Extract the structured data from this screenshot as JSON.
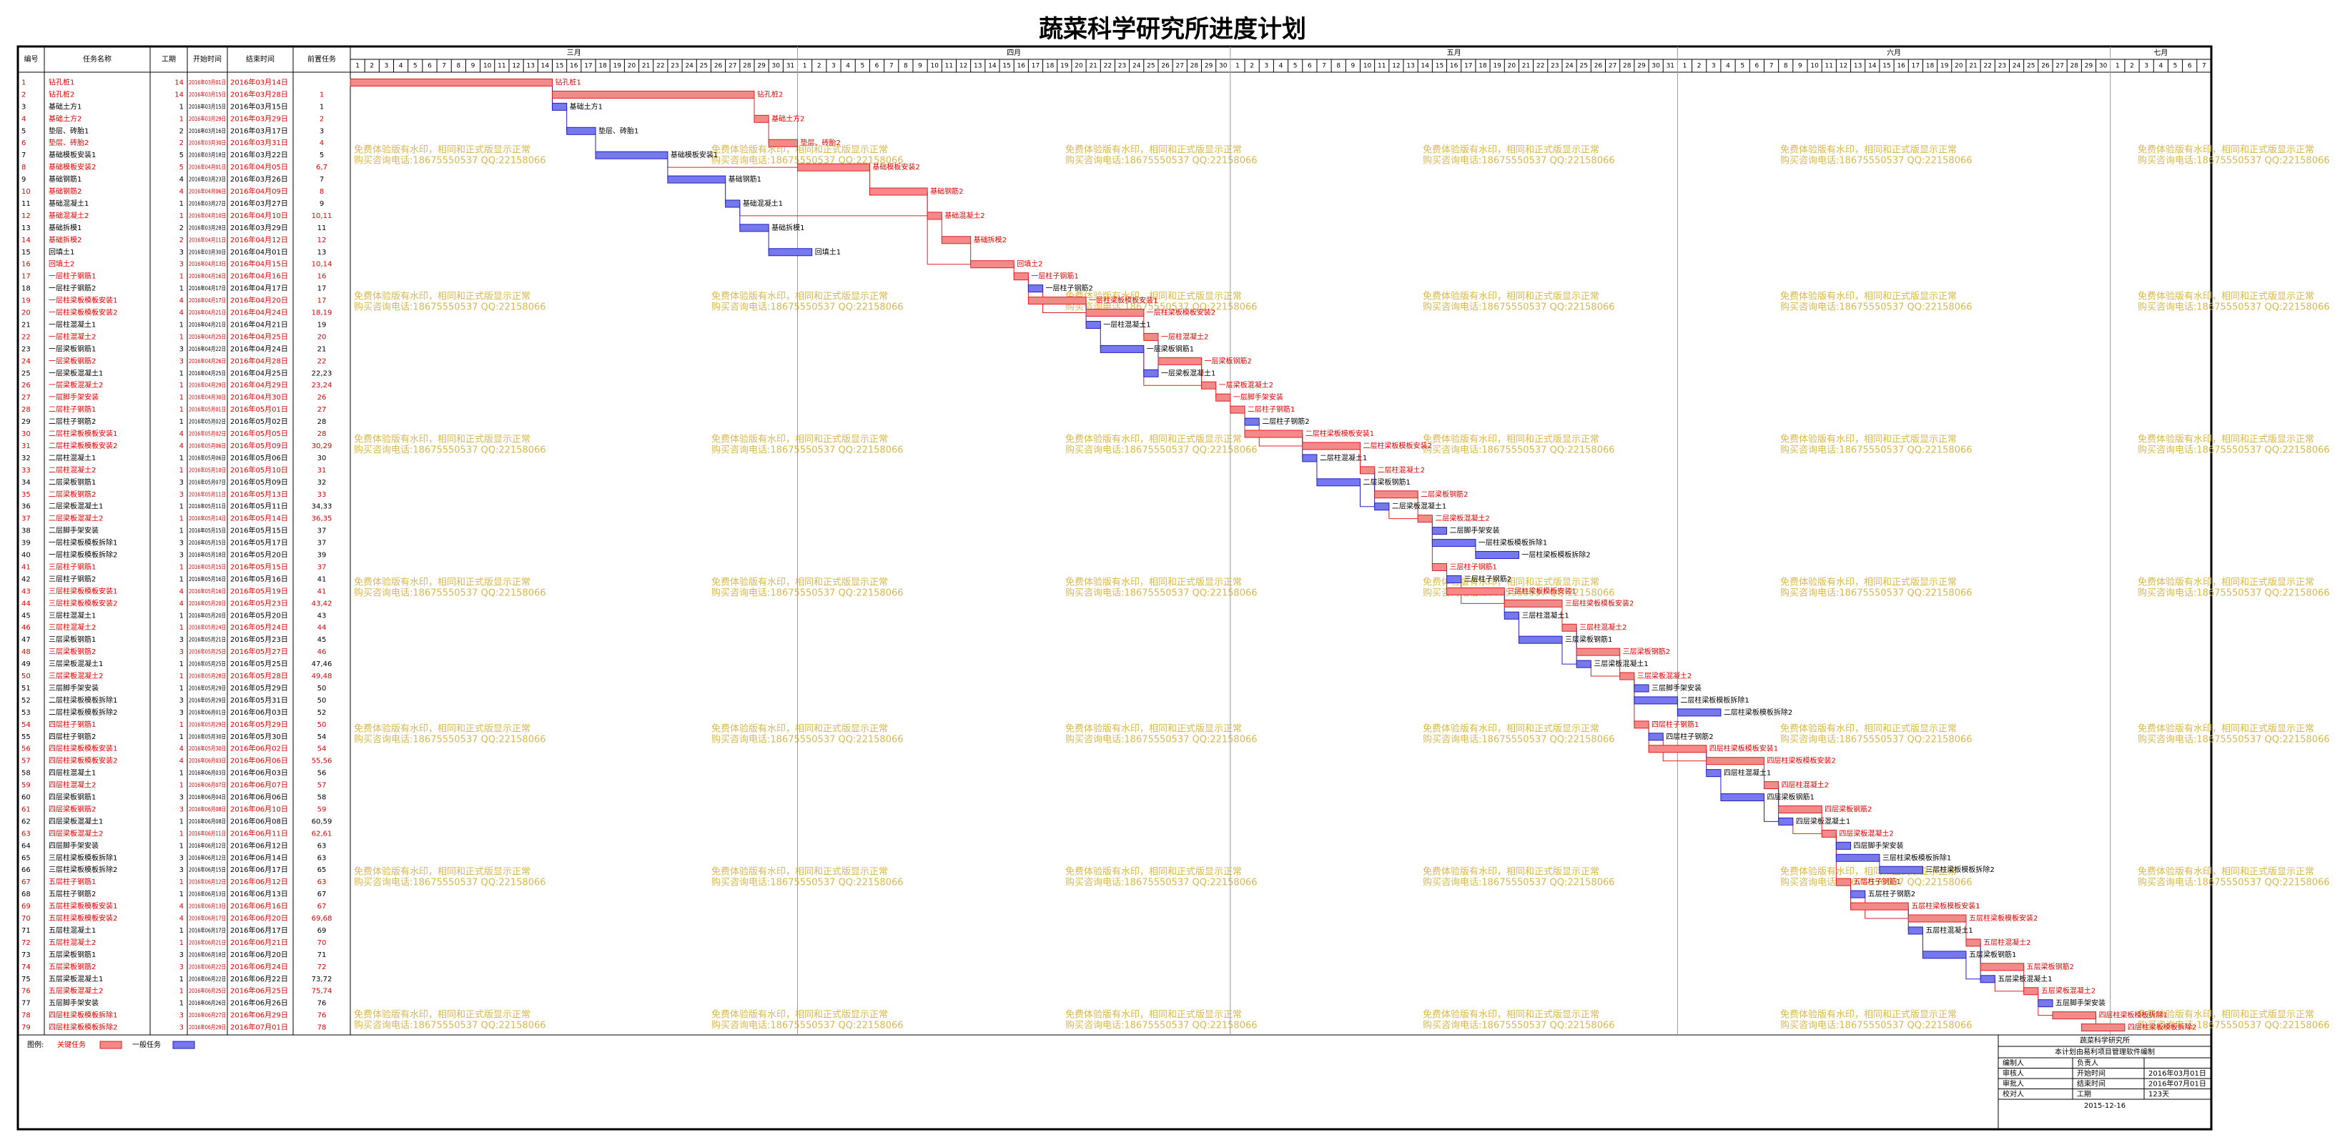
{
  "title": "蔬菜科学研究所进度计划",
  "table": {
    "headers": [
      "编号",
      "任务名称",
      "工期",
      "开始时间",
      "结束时间",
      "前置任务"
    ]
  },
  "timeline": {
    "months": [
      {
        "name": "三月",
        "days": [
          1,
          2,
          3,
          4,
          5,
          6,
          7,
          8,
          9,
          10,
          11,
          12,
          13,
          14,
          15,
          16,
          17,
          18,
          19,
          20,
          21,
          22,
          23,
          24,
          25,
          26,
          27,
          28,
          29,
          30,
          31
        ]
      },
      {
        "name": "四月",
        "days": [
          1,
          2,
          3,
          4,
          5,
          6,
          7,
          8,
          9,
          10,
          11,
          12,
          13,
          14,
          15,
          16,
          17,
          18,
          19,
          20,
          21,
          22,
          23,
          24,
          25,
          26,
          27,
          28,
          29,
          30
        ]
      },
      {
        "name": "五月",
        "days": [
          1,
          2,
          3,
          4,
          5,
          6,
          7,
          8,
          9,
          10,
          11,
          12,
          13,
          14,
          15,
          16,
          17,
          18,
          19,
          20,
          21,
          22,
          23,
          24,
          25,
          26,
          27,
          28,
          29,
          30,
          31
        ]
      },
      {
        "name": "六月",
        "days": [
          1,
          2,
          3,
          4,
          5,
          6,
          7,
          8,
          9,
          10,
          11,
          12,
          13,
          14,
          15,
          16,
          17,
          18,
          19,
          20,
          21,
          22,
          23,
          24,
          25,
          26,
          27,
          28,
          29,
          30
        ]
      },
      {
        "name": "七月",
        "days": [
          1,
          2,
          3,
          4,
          5,
          6,
          7
        ]
      }
    ]
  },
  "tasks": [
    {
      "id": 1,
      "name": "钻孔桩1",
      "duration": 14,
      "start": "2016年03月01日",
      "end": "2016年03月14日",
      "critical": true
    },
    {
      "id": 2,
      "name": "钻孔桩2",
      "duration": 14,
      "start": "2016年03月15日",
      "end": "2016年03月28日",
      "pred": "1",
      "critical": true
    },
    {
      "id": 3,
      "name": "基础土方1",
      "duration": 1,
      "start": "2016年03月15日",
      "end": "2016年03月15日",
      "pred": "1",
      "critical": false
    },
    {
      "id": 4,
      "name": "基础土方2",
      "duration": 1,
      "start": "2016年03月29日",
      "end": "2016年03月29日",
      "pred": "2",
      "critical": true
    },
    {
      "id": 5,
      "name": "垫层、砖胎1",
      "duration": 2,
      "start": "2016年03月16日",
      "end": "2016年03月17日",
      "pred": "3",
      "critical": false
    },
    {
      "id": 6,
      "name": "垫层、砖胎2",
      "duration": 2,
      "start": "2016年03月30日",
      "end": "2016年03月31日",
      "pred": "4",
      "critical": true
    },
    {
      "id": 7,
      "name": "基础模板安装1",
      "duration": 5,
      "start": "2016年03月18日",
      "end": "2016年03月22日",
      "pred": "5",
      "critical": false
    },
    {
      "id": 8,
      "name": "基础模板安装2",
      "duration": 5,
      "start": "2016年04月01日",
      "end": "2016年04月05日",
      "pred": "6,7",
      "critical": true
    },
    {
      "id": 9,
      "name": "基础钢筋1",
      "duration": 4,
      "start": "2016年03月23日",
      "end": "2016年03月26日",
      "pred": "7",
      "critical": false
    },
    {
      "id": 10,
      "name": "基础钢筋2",
      "duration": 4,
      "start": "2016年04月06日",
      "end": "2016年04月09日",
      "pred": "8",
      "critical": true
    },
    {
      "id": 11,
      "name": "基础混凝土1",
      "duration": 1,
      "start": "2016年03月27日",
      "end": "2016年03月27日",
      "pred": "9",
      "critical": false
    },
    {
      "id": 12,
      "name": "基础混凝土2",
      "duration": 1,
      "start": "2016年04月10日",
      "end": "2016年04月10日",
      "pred": "10,11",
      "critical": true
    },
    {
      "id": 13,
      "name": "基础拆模1",
      "duration": 2,
      "start": "2016年03月28日",
      "end": "2016年03月29日",
      "pred": "11",
      "critical": false
    },
    {
      "id": 14,
      "name": "基础拆模2",
      "duration": 2,
      "start": "2016年04月11日",
      "end": "2016年04月12日",
      "pred": "12",
      "critical": true
    },
    {
      "id": 15,
      "name": "回填土1",
      "duration": 3,
      "start": "2016年03月30日",
      "end": "2016年04月01日",
      "pred": "13",
      "critical": false
    },
    {
      "id": 16,
      "name": "回填土2",
      "duration": 3,
      "start": "2016年04月13日",
      "end": "2016年04月15日",
      "pred": "10,14",
      "critical": true
    },
    {
      "id": 17,
      "name": "一层柱子钢筋1",
      "duration": 1,
      "start": "2016年04月16日",
      "end": "2016年04月16日",
      "pred": "16",
      "critical": true
    },
    {
      "id": 18,
      "name": "一层柱子钢筋2",
      "duration": 1,
      "start": "2016年04月17日",
      "end": "2016年04月17日",
      "pred": "17",
      "critical": false
    },
    {
      "id": 19,
      "name": "一层柱梁板模板安装1",
      "duration": 4,
      "start": "2016年04月17日",
      "end": "2016年04月20日",
      "pred": "17",
      "critical": true
    },
    {
      "id": 20,
      "name": "一层柱梁板模板安装2",
      "duration": 4,
      "start": "2016年04月21日",
      "end": "2016年04月24日",
      "pred": "18,19",
      "critical": true
    },
    {
      "id": 21,
      "name": "一层柱混凝土1",
      "duration": 1,
      "start": "2016年04月21日",
      "end": "2016年04月21日",
      "pred": "19",
      "critical": false
    },
    {
      "id": 22,
      "name": "一层柱混凝土2",
      "duration": 1,
      "start": "2016年04月25日",
      "end": "2016年04月25日",
      "pred": "20",
      "critical": true
    },
    {
      "id": 23,
      "name": "一层梁板钢筋1",
      "duration": 3,
      "start": "2016年04月22日",
      "end": "2016年04月24日",
      "pred": "21",
      "critical": false
    },
    {
      "id": 24,
      "name": "一层梁板钢筋2",
      "duration": 3,
      "start": "2016年04月26日",
      "end": "2016年04月28日",
      "pred": "22",
      "critical": true
    },
    {
      "id": 25,
      "name": "一层梁板混凝土1",
      "duration": 1,
      "start": "2016年04月25日",
      "end": "2016年04月25日",
      "pred": "22,23",
      "critical": false
    },
    {
      "id": 26,
      "name": "一层梁板混凝土2",
      "duration": 1,
      "start": "2016年04月29日",
      "end": "2016年04月29日",
      "pred": "23,24",
      "critical": true
    },
    {
      "id": 27,
      "name": "一层脚手架安装",
      "duration": 1,
      "start": "2016年04月30日",
      "end": "2016年04月30日",
      "pred": "26",
      "critical": true
    },
    {
      "id": 28,
      "name": "二层柱子钢筋1",
      "duration": 1,
      "start": "2016年05月01日",
      "end": "2016年05月01日",
      "pred": "27",
      "critical": true
    },
    {
      "id": 29,
      "name": "二层柱子钢筋2",
      "duration": 1,
      "start": "2016年05月02日",
      "end": "2016年05月02日",
      "pred": "28",
      "critical": false
    },
    {
      "id": 30,
      "name": "二层柱梁板模板安装1",
      "duration": 4,
      "start": "2016年05月02日",
      "end": "2016年05月05日",
      "pred": "28",
      "critical": true
    },
    {
      "id": 31,
      "name": "二层柱梁板模板安装2",
      "duration": 4,
      "start": "2016年05月06日",
      "end": "2016年05月09日",
      "pred": "30,29",
      "critical": true
    },
    {
      "id": 32,
      "name": "二层柱混凝土1",
      "duration": 1,
      "start": "2016年05月06日",
      "end": "2016年05月06日",
      "pred": "30",
      "critical": false
    },
    {
      "id": 33,
      "name": "二层柱混凝土2",
      "duration": 1,
      "start": "2016年05月10日",
      "end": "2016年05月10日",
      "pred": "31",
      "critical": true
    },
    {
      "id": 34,
      "name": "二层梁板钢筋1",
      "duration": 3,
      "start": "2016年05月07日",
      "end": "2016年05月09日",
      "pred": "32",
      "critical": false
    },
    {
      "id": 35,
      "name": "二层梁板钢筋2",
      "duration": 3,
      "start": "2016年05月11日",
      "end": "2016年05月13日",
      "pred": "33",
      "critical": true
    },
    {
      "id": 36,
      "name": "二层梁板混凝土1",
      "duration": 1,
      "start": "2016年05月11日",
      "end": "2016年05月11日",
      "pred": "34,33",
      "critical": false
    },
    {
      "id": 37,
      "name": "二层梁板混凝土2",
      "duration": 1,
      "start": "2016年05月14日",
      "end": "2016年05月14日",
      "pred": "36,35",
      "critical": true
    },
    {
      "id": 38,
      "name": "二层脚手架安装",
      "duration": 1,
      "start": "2016年05月15日",
      "end": "2016年05月15日",
      "pred": "37",
      "critical": false
    },
    {
      "id": 39,
      "name": "一层柱梁板模板拆除1",
      "duration": 3,
      "start": "2016年05月15日",
      "end": "2016年05月17日",
      "pred": "37",
      "critical": false
    },
    {
      "id": 40,
      "name": "一层柱梁板模板拆除2",
      "duration": 3,
      "start": "2016年05月18日",
      "end": "2016年05月20日",
      "pred": "39",
      "critical": false
    },
    {
      "id": 41,
      "name": "三层柱子钢筋1",
      "duration": 1,
      "start": "2016年05月15日",
      "end": "2016年05月15日",
      "pred": "37",
      "critical": true
    },
    {
      "id": 42,
      "name": "三层柱子钢筋2",
      "duration": 1,
      "start": "2016年05月16日",
      "end": "2016年05月16日",
      "pred": "41",
      "critical": false
    },
    {
      "id": 43,
      "name": "三层柱梁板模板安装1",
      "duration": 4,
      "start": "2016年05月16日",
      "end": "2016年05月19日",
      "pred": "41",
      "critical": true
    },
    {
      "id": 44,
      "name": "三层柱梁板模板安装2",
      "duration": 4,
      "start": "2016年05月20日",
      "end": "2016年05月23日",
      "pred": "43,42",
      "critical": true
    },
    {
      "id": 45,
      "name": "三层柱混凝土1",
      "duration": 1,
      "start": "2016年05月20日",
      "end": "2016年05月20日",
      "pred": "43",
      "critical": false
    },
    {
      "id": 46,
      "name": "三层柱混凝土2",
      "duration": 1,
      "start": "2016年05月24日",
      "end": "2016年05月24日",
      "pred": "44",
      "critical": true
    },
    {
      "id": 47,
      "name": "三层梁板钢筋1",
      "duration": 3,
      "start": "2016年05月21日",
      "end": "2016年05月23日",
      "pred": "45",
      "critical": false
    },
    {
      "id": 48,
      "name": "三层梁板钢筋2",
      "duration": 3,
      "start": "2016年05月25日",
      "end": "2016年05月27日",
      "pred": "46",
      "critical": true
    },
    {
      "id": 49,
      "name": "三层梁板混凝土1",
      "duration": 1,
      "start": "2016年05月25日",
      "end": "2016年05月25日",
      "pred": "47,46",
      "critical": false
    },
    {
      "id": 50,
      "name": "三层梁板混凝土2",
      "duration": 1,
      "start": "2016年05月28日",
      "end": "2016年05月28日",
      "pred": "49,48",
      "critical": true
    },
    {
      "id": 51,
      "name": "三层脚手架安装",
      "duration": 1,
      "start": "2016年05月29日",
      "end": "2016年05月29日",
      "pred": "50",
      "critical": false
    },
    {
      "id": 52,
      "name": "二层柱梁板模板拆除1",
      "duration": 3,
      "start": "2016年05月29日",
      "end": "2016年05月31日",
      "pred": "50",
      "critical": false
    },
    {
      "id": 53,
      "name": "二层柱梁板模板拆除2",
      "duration": 3,
      "start": "2016年06月01日",
      "end": "2016年06月03日",
      "pred": "52",
      "critical": false
    },
    {
      "id": 54,
      "name": "四层柱子钢筋1",
      "duration": 1,
      "start": "2016年05月29日",
      "end": "2016年05月29日",
      "pred": "50",
      "critical": true
    },
    {
      "id": 55,
      "name": "四层柱子钢筋2",
      "duration": 1,
      "start": "2016年05月30日",
      "end": "2016年05月30日",
      "pred": "54",
      "critical": false
    },
    {
      "id": 56,
      "name": "四层柱梁板模板安装1",
      "duration": 4,
      "start": "2016年05月30日",
      "end": "2016年06月02日",
      "pred": "54",
      "critical": true
    },
    {
      "id": 57,
      "name": "四层柱梁板模板安装2",
      "duration": 4,
      "start": "2016年06月03日",
      "end": "2016年06月06日",
      "pred": "55,56",
      "critical": true
    },
    {
      "id": 58,
      "name": "四层柱混凝土1",
      "duration": 1,
      "start": "2016年06月03日",
      "end": "2016年06月03日",
      "pred": "56",
      "critical": false
    },
    {
      "id": 59,
      "name": "四层柱混凝土2",
      "duration": 1,
      "start": "2016年06月07日",
      "end": "2016年06月07日",
      "pred": "57",
      "critical": true
    },
    {
      "id": 60,
      "name": "四层梁板钢筋1",
      "duration": 3,
      "start": "2016年06月04日",
      "end": "2016年06月06日",
      "pred": "58",
      "critical": false
    },
    {
      "id": 61,
      "name": "四层梁板钢筋2",
      "duration": 3,
      "start": "2016年06月08日",
      "end": "2016年06月10日",
      "pred": "59",
      "critical": true
    },
    {
      "id": 62,
      "name": "四层梁板混凝土1",
      "duration": 1,
      "start": "2016年06月08日",
      "end": "2016年06月08日",
      "pred": "60,59",
      "critical": false
    },
    {
      "id": 63,
      "name": "四层梁板混凝土2",
      "duration": 1,
      "start": "2016年06月11日",
      "end": "2016年06月11日",
      "pred": "62,61",
      "critical": true
    },
    {
      "id": 64,
      "name": "四层脚手架安装",
      "duration": 1,
      "start": "2016年06月12日",
      "end": "2016年06月12日",
      "pred": "63",
      "critical": false
    },
    {
      "id": 65,
      "name": "三层柱梁板模板拆除1",
      "duration": 3,
      "start": "2016年06月12日",
      "end": "2016年06月14日",
      "pred": "63",
      "critical": false
    },
    {
      "id": 66,
      "name": "三层柱梁板模板拆除2",
      "duration": 3,
      "start": "2016年06月15日",
      "end": "2016年06月17日",
      "pred": "65",
      "critical": false
    },
    {
      "id": 67,
      "name": "五层柱子钢筋1",
      "duration": 1,
      "start": "2016年06月12日",
      "end": "2016年06月12日",
      "pred": "63",
      "critical": true
    },
    {
      "id": 68,
      "name": "五层柱子钢筋2",
      "duration": 1,
      "start": "2016年06月13日",
      "end": "2016年06月13日",
      "pred": "67",
      "critical": false
    },
    {
      "id": 69,
      "name": "五层柱梁板模板安装1",
      "duration": 4,
      "start": "2016年06月13日",
      "end": "2016年06月16日",
      "pred": "67",
      "critical": true
    },
    {
      "id": 70,
      "name": "五层柱梁板模板安装2",
      "duration": 4,
      "start": "2016年06月17日",
      "end": "2016年06月20日",
      "pred": "69,68",
      "critical": true
    },
    {
      "id": 71,
      "name": "五层柱混凝土1",
      "duration": 1,
      "start": "2016年06月17日",
      "end": "2016年06月17日",
      "pred": "69",
      "critical": false
    },
    {
      "id": 72,
      "name": "五层柱混凝土2",
      "duration": 1,
      "start": "2016年06月21日",
      "end": "2016年06月21日",
      "pred": "70",
      "critical": true
    },
    {
      "id": 73,
      "name": "五层梁板钢筋1",
      "duration": 3,
      "start": "2016年06月18日",
      "end": "2016年06月20日",
      "pred": "71",
      "critical": false
    },
    {
      "id": 74,
      "name": "五层梁板钢筋2",
      "duration": 3,
      "start": "2016年06月22日",
      "end": "2016年06月24日",
      "pred": "72",
      "critical": true
    },
    {
      "id": 75,
      "name": "五层梁板混凝土1",
      "duration": 1,
      "start": "2016年06月22日",
      "end": "2016年06月22日",
      "pred": "73,72",
      "critical": false
    },
    {
      "id": 76,
      "name": "五层梁板混凝土2",
      "duration": 1,
      "start": "2016年06月25日",
      "end": "2016年06月25日",
      "pred": "75,74",
      "critical": true
    },
    {
      "id": 77,
      "name": "五层脚手架安装",
      "duration": 1,
      "start": "2016年06月26日",
      "end": "2016年06月26日",
      "pred": "76",
      "critical": false
    },
    {
      "id": 78,
      "name": "四层柱梁板模板拆除1",
      "duration": 3,
      "start": "2016年06月27日",
      "end": "2016年06月29日",
      "pred": "76",
      "critical": true
    },
    {
      "id": 79,
      "name": "四层柱梁板模板拆除2",
      "duration": 3,
      "start": "2016年06月29日",
      "end": "2016年07月01日",
      "pred": "78",
      "critical": true
    }
  ],
  "legend": {
    "title": "图例:",
    "critical": "关键任务",
    "normal": "一般任务"
  },
  "colors": {
    "critical": "#f28a8a",
    "critical_stroke": "#e02020",
    "normal": "#7878ee",
    "normal_stroke": "#2020c0"
  },
  "watermark": [
    "免费体验版有水印，相同和正式版显示正常",
    "购买咨询电话:18675550537 QQ:22158066"
  ],
  "info": {
    "org": "蔬菜科学研究所",
    "note": "本计划由易利项目管理软件编制",
    "rows": [
      [
        "编制人",
        "负责人"
      ],
      [
        "审核人",
        "开始时间",
        "2016年03月01日"
      ],
      [
        "审批人",
        "结束时间",
        "2016年07月01日"
      ],
      [
        "校对人",
        "工期",
        "123天"
      ]
    ],
    "date": "2015-12-16"
  }
}
